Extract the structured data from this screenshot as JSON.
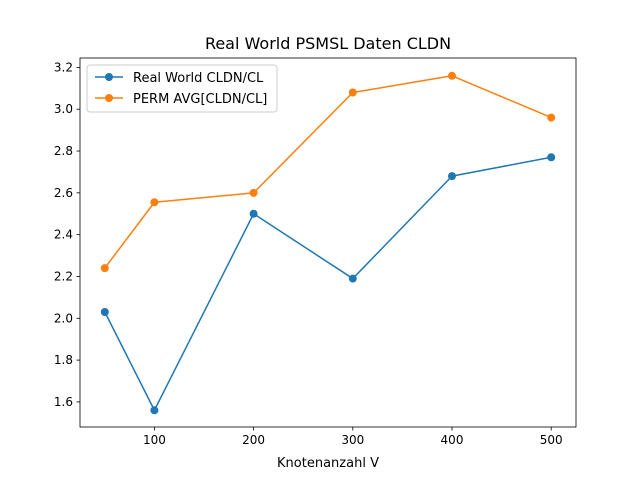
{
  "chart_data": {
    "type": "line",
    "title": "Real World PSMSL Daten CLDN",
    "xlabel": "Knotenanzahl V",
    "ylabel": "",
    "x": [
      50,
      100,
      200,
      300,
      400,
      500
    ],
    "xlim": [
      25,
      525
    ],
    "ylim": [
      1.48,
      3.245
    ],
    "xticks": [
      100,
      200,
      300,
      400,
      500
    ],
    "yticks": [
      1.6,
      1.8,
      2.0,
      2.2,
      2.4,
      2.6,
      2.8,
      3.0,
      3.2
    ],
    "ytick_labels": [
      "1.6",
      "1.8",
      "2.0",
      "2.2",
      "2.4",
      "2.6",
      "2.8",
      "3.0",
      "3.2"
    ],
    "grid": false,
    "legend_position": "top-left",
    "series": [
      {
        "name": "Real World CLDN/CL",
        "color": "#1f77b4",
        "marker": "circle",
        "values": [
          2.03,
          1.56,
          2.5,
          2.19,
          2.68,
          2.77
        ]
      },
      {
        "name": "PERM AVG[CLDN/CL]",
        "color": "#ff7f0e",
        "marker": "circle",
        "values": [
          2.24,
          2.555,
          2.6,
          3.08,
          3.16,
          2.96
        ]
      }
    ]
  }
}
